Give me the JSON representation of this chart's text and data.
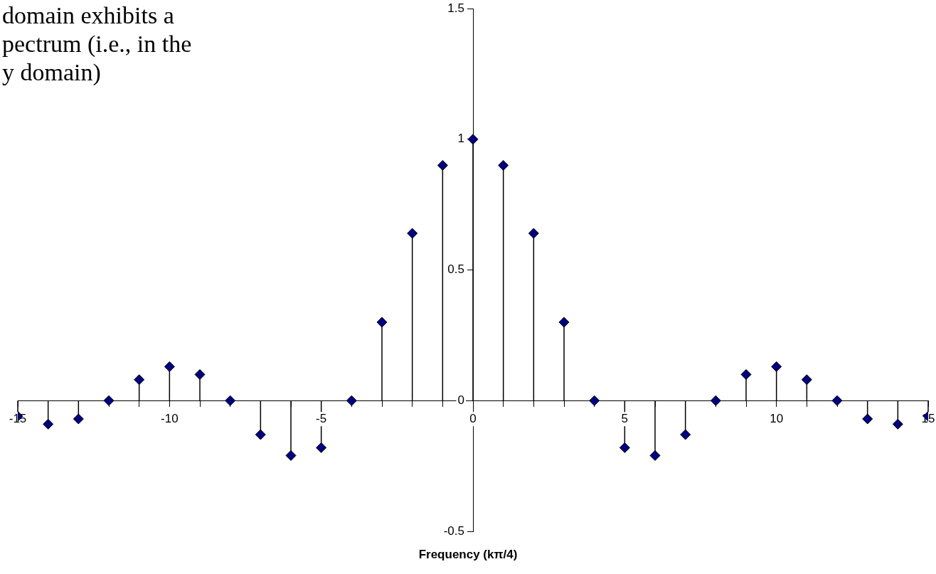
{
  "chart_data": {
    "type": "lollipop",
    "xlabel": "Frequency (kπ/4)",
    "annotations": [
      "domain exhibits a\npectrum (i.e., in the\ny domain)"
    ],
    "x": [
      -15,
      -14,
      -13,
      -12,
      -11,
      -10,
      -9,
      -8,
      -7,
      -6,
      -5,
      -4,
      -3,
      -2,
      -1,
      0,
      1,
      2,
      3,
      4,
      5,
      6,
      7,
      8,
      9,
      10,
      11,
      12,
      13,
      14,
      15
    ],
    "series": [
      {
        "color": "#000080",
        "values": [
          -0.06,
          -0.09,
          -0.07,
          0,
          0.08,
          0.13,
          0.1,
          0,
          -0.13,
          -0.21,
          -0.18,
          0,
          0.3,
          0.64,
          0.9,
          1,
          0.9,
          0.64,
          0.3,
          0,
          -0.18,
          -0.21,
          -0.13,
          0,
          0.1,
          0.13,
          0.08,
          0,
          -0.07,
          -0.09,
          -0.06
        ]
      }
    ],
    "xlim": [
      -15,
      15
    ],
    "xticks": [
      -15,
      {
        "value": -14,
        "label": null
      },
      {
        "value": -13,
        "label": null
      },
      {
        "value": -12,
        "label": null
      },
      {
        "value": -11,
        "label": null
      },
      -10,
      {
        "value": -9,
        "label": null
      },
      {
        "value": -8,
        "label": null
      },
      {
        "value": -7,
        "label": null
      },
      {
        "value": -6,
        "label": null
      },
      -5,
      {
        "value": -4,
        "label": null
      },
      {
        "value": -3,
        "label": null
      },
      {
        "value": -2,
        "label": null
      },
      {
        "value": -1,
        "label": null
      },
      0,
      {
        "value": 1,
        "label": null
      },
      {
        "value": 2,
        "label": null
      },
      {
        "value": 3,
        "label": null
      },
      {
        "value": 4,
        "label": null
      },
      5,
      {
        "value": 6,
        "label": null
      },
      {
        "value": 7,
        "label": null
      },
      {
        "value": 8,
        "label": null
      },
      {
        "value": 9,
        "label": null
      },
      10,
      {
        "value": 11,
        "label": null
      },
      {
        "value": 12,
        "label": null
      },
      {
        "value": 13,
        "label": null
      },
      {
        "value": 14,
        "label": null
      },
      15
    ],
    "ylim": [
      -0.5,
      1.5
    ],
    "yticks": [
      -0.5,
      0,
      0.5,
      1,
      1.5
    ],
    "marker": "diamond",
    "grid": false,
    "legend": false
  }
}
